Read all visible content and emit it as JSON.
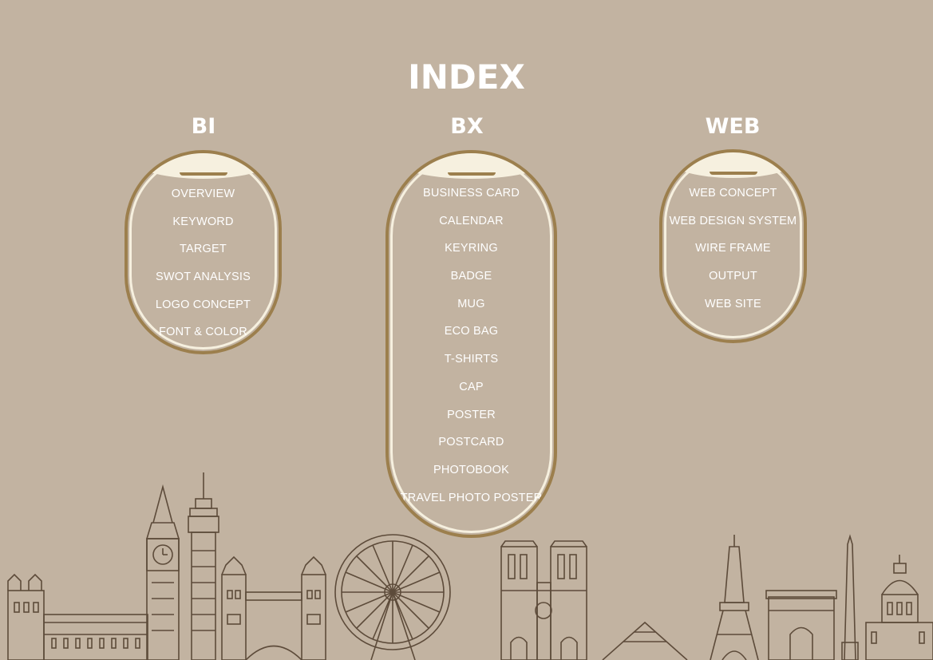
{
  "title": "INDEX",
  "columns": [
    {
      "heading": "BI",
      "items": [
        "OVERVIEW",
        "KEYWORD",
        "TARGET",
        "SWOT ANALYSIS",
        "LOGO CONCEPT",
        "FONT & COLOR"
      ]
    },
    {
      "heading": "BX",
      "items": [
        "BUSINESS CARD",
        "CALENDAR",
        "KEYRING",
        "BADGE",
        "MUG",
        "ECO BAG",
        "T-SHIRTS",
        "CAP",
        "POSTER",
        "POSTCARD",
        "PHOTOBOOK",
        "TRAVEL PHOTO POSTER"
      ]
    },
    {
      "heading": "WEB",
      "items": [
        "WEB CONCEPT",
        "WEB DESIGN SYSTEM",
        "WIRE FRAME",
        "OUTPUT",
        "WEB SITE"
      ]
    }
  ],
  "colors": {
    "background": "#c2b3a1",
    "frame": "#9c7f4d",
    "shade": "#f6f0df",
    "skyline": "#5d4b3a"
  }
}
